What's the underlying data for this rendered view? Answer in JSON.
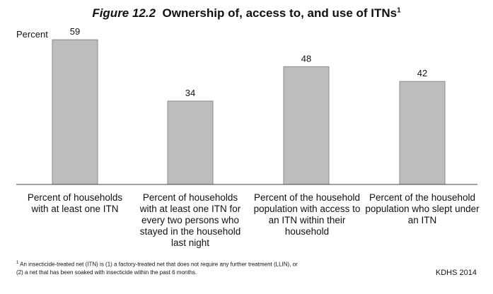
{
  "title": {
    "figure_label": "Figure 12.2",
    "text": "Ownership of, access to, and use of ITNs",
    "footnote_mark": "1"
  },
  "chart_data": {
    "type": "bar",
    "title": "Figure 12.2  Ownership of, access to, and use of ITNs",
    "ylabel": "Percent",
    "xlabel": "",
    "categories": [
      "Percent of households with at least one ITN",
      "Percent of households with at least one ITN for every two persons who stayed in the household last night",
      "Percent of the household population with access to an ITN within their household",
      "Percent of the household population who slept under an ITN"
    ],
    "values": [
      59,
      34,
      48,
      42
    ],
    "ylim": [
      0,
      70
    ],
    "grid": false,
    "legend": "none",
    "bar_color": "#bdbdbd",
    "bar_edge_color": "#8a8a8a"
  },
  "footnote": {
    "mark": "1",
    "line1": "An insecticide-treated net (ITN) is (1) a factory-treated net that does not require any further treatment (LLIN), or",
    "line2": "(2) a net that has been soaked with insecticide within the past 6 months."
  },
  "source": "KDHS 2014"
}
